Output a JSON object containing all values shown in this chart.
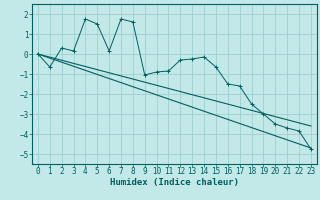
{
  "xlabel": "Humidex (Indice chaleur)",
  "background_color": "#c2e8e8",
  "grid_color": "#a0cece",
  "line_color": "#006060",
  "xlim": [
    -0.5,
    23.5
  ],
  "ylim": [
    -5.5,
    2.5
  ],
  "yticks": [
    -5,
    -4,
    -3,
    -2,
    -1,
    0,
    1,
    2
  ],
  "xticks": [
    0,
    1,
    2,
    3,
    4,
    5,
    6,
    7,
    8,
    9,
    10,
    11,
    12,
    13,
    14,
    15,
    16,
    17,
    18,
    19,
    20,
    21,
    22,
    23
  ],
  "series1_x": [
    0,
    1,
    2,
    3,
    4,
    5,
    6,
    7,
    8,
    9,
    10,
    11,
    12,
    13,
    14,
    15,
    16,
    17,
    18,
    19,
    20,
    21,
    22,
    23
  ],
  "series1_y": [
    0.0,
    -0.65,
    0.3,
    0.15,
    1.75,
    1.5,
    0.15,
    1.75,
    1.6,
    -1.05,
    -0.9,
    -0.85,
    -0.3,
    -0.25,
    -0.15,
    -0.65,
    -1.5,
    -1.6,
    -2.5,
    -3.0,
    -3.5,
    -3.7,
    -3.85,
    -4.75
  ],
  "series2_x": [
    0,
    23
  ],
  "series2_y": [
    0.0,
    -4.7
  ],
  "series3_x": [
    0,
    23
  ],
  "series3_y": [
    0.0,
    -3.6
  ],
  "font_family": "monospace",
  "tick_fontsize": 5.5,
  "xlabel_fontsize": 6.5
}
